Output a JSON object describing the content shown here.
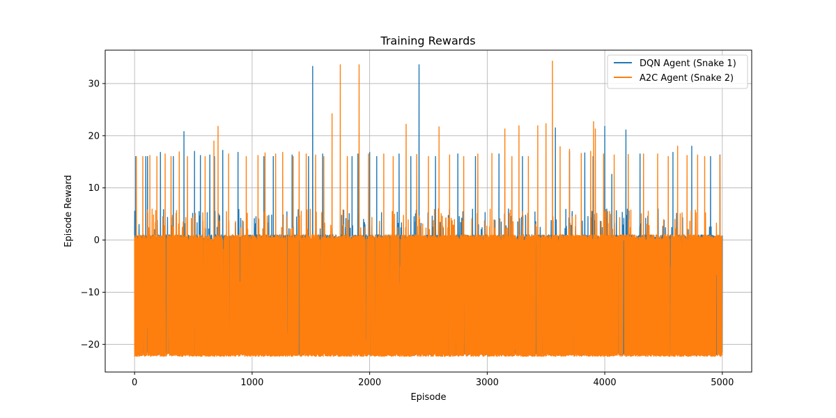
{
  "chart_data": {
    "type": "line",
    "title": "Training Rewards",
    "xlabel": "Episode",
    "ylabel": "Episode Reward",
    "xlim": [
      -250,
      5250
    ],
    "ylim": [
      -25.3,
      36.4
    ],
    "xticks": [
      0,
      1000,
      2000,
      3000,
      4000,
      5000
    ],
    "xtick_labels": [
      "0",
      "1000",
      "2000",
      "3000",
      "4000",
      "5000"
    ],
    "yticks": [
      -20,
      -10,
      0,
      10,
      20,
      30
    ],
    "ytick_labels": [
      "−20",
      "−10",
      "0",
      "10",
      "20",
      "30"
    ],
    "grid": true,
    "legend_position": "top-right",
    "n_episodes": 5000,
    "series": [
      {
        "name": "DQN Agent (Snake 1)",
        "color": "#1f77b4",
        "baseline": [
          -22,
          1
        ],
        "spikes": [
          [
            10,
            16
          ],
          [
            95,
            16
          ],
          [
            110,
            16
          ],
          [
            220,
            16.8
          ],
          [
            330,
            16
          ],
          [
            420,
            20.8
          ],
          [
            510,
            17
          ],
          [
            560,
            16.2
          ],
          [
            640,
            16.3
          ],
          [
            680,
            16
          ],
          [
            750,
            17.2
          ],
          [
            880,
            16.8
          ],
          [
            1100,
            16
          ],
          [
            1180,
            16
          ],
          [
            1340,
            16.3
          ],
          [
            1480,
            16
          ],
          [
            1515,
            33.3
          ],
          [
            1600,
            16.5
          ],
          [
            1850,
            16
          ],
          [
            1900,
            16.5
          ],
          [
            2000,
            16.8
          ],
          [
            2060,
            16
          ],
          [
            2250,
            16.5
          ],
          [
            2350,
            16
          ],
          [
            2420,
            33.6
          ],
          [
            2560,
            16
          ],
          [
            2750,
            16.5
          ],
          [
            2900,
            16
          ],
          [
            3100,
            16.5
          ],
          [
            3300,
            16
          ],
          [
            3580,
            21.5
          ],
          [
            3700,
            17
          ],
          [
            3830,
            16.7
          ],
          [
            3900,
            16
          ],
          [
            4000,
            21.8
          ],
          [
            4060,
            12.6
          ],
          [
            4180,
            21.1
          ],
          [
            4300,
            16.5
          ],
          [
            4580,
            16.8
          ],
          [
            4740,
            18
          ],
          [
            4900,
            16
          ],
          [
            4980,
            16.3
          ]
        ]
      },
      {
        "name": "A2C Agent (Snake 2)",
        "color": "#ff7f0e",
        "baseline": [
          -22.3,
          1
        ],
        "spikes": [
          [
            15,
            16
          ],
          [
            70,
            16
          ],
          [
            130,
            16.2
          ],
          [
            190,
            16
          ],
          [
            260,
            16.5
          ],
          [
            310,
            16
          ],
          [
            380,
            16.9
          ],
          [
            450,
            16
          ],
          [
            600,
            16
          ],
          [
            675,
            19
          ],
          [
            710,
            21.8
          ],
          [
            800,
            16.5
          ],
          [
            950,
            16
          ],
          [
            1050,
            16.2
          ],
          [
            1110,
            16.7
          ],
          [
            1200,
            16.5
          ],
          [
            1260,
            16.8
          ],
          [
            1350,
            16
          ],
          [
            1400,
            16.9
          ],
          [
            1460,
            16.5
          ],
          [
            1540,
            16.3
          ],
          [
            1610,
            16
          ],
          [
            1680,
            24.2
          ],
          [
            1750,
            33.6
          ],
          [
            1810,
            16
          ],
          [
            1910,
            33.6
          ],
          [
            1990,
            16.5
          ],
          [
            2120,
            16.5
          ],
          [
            2200,
            16
          ],
          [
            2310,
            22.2
          ],
          [
            2400,
            16.4
          ],
          [
            2500,
            16
          ],
          [
            2590,
            21.7
          ],
          [
            2680,
            16.3
          ],
          [
            2800,
            16
          ],
          [
            2920,
            16.5
          ],
          [
            3040,
            16.6
          ],
          [
            3150,
            21.3
          ],
          [
            3210,
            16
          ],
          [
            3270,
            21.9
          ],
          [
            3350,
            16
          ],
          [
            3430,
            21.9
          ],
          [
            3500,
            22.3
          ],
          [
            3555,
            34.3
          ],
          [
            3620,
            17.9
          ],
          [
            3700,
            17.4
          ],
          [
            3800,
            16.6
          ],
          [
            3880,
            17
          ],
          [
            3905,
            22.7
          ],
          [
            3920,
            21.3
          ],
          [
            3990,
            16.5
          ],
          [
            4080,
            16.3
          ],
          [
            4200,
            16.4
          ],
          [
            4330,
            16.5
          ],
          [
            4450,
            16.5
          ],
          [
            4540,
            16
          ],
          [
            4620,
            18
          ],
          [
            4700,
            16.2
          ],
          [
            4790,
            16.3
          ],
          [
            4850,
            16
          ],
          [
            4980,
            16.2
          ]
        ]
      }
    ]
  }
}
